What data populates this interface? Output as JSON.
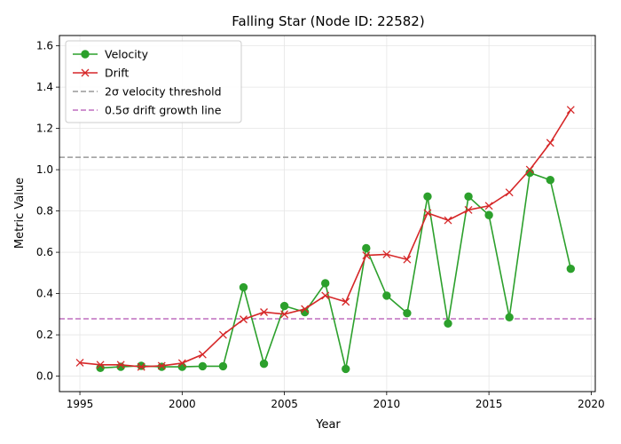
{
  "chart_data": {
    "type": "line",
    "title": "Falling Star (Node ID: 22582)",
    "xlabel": "Year",
    "ylabel": "Metric Value",
    "xlim": [
      1994,
      2020.2
    ],
    "ylim": [
      -0.075,
      1.65
    ],
    "xticks": [
      1995,
      2000,
      2005,
      2010,
      2015,
      2020
    ],
    "yticks": [
      0.0,
      0.2,
      0.4,
      0.6,
      0.8,
      1.0,
      1.2,
      1.4,
      1.6
    ],
    "xtick_labels": [
      "1995",
      "2000",
      "2005",
      "2010",
      "2015",
      "2020"
    ],
    "ytick_labels": [
      "0.0",
      "0.2",
      "0.4",
      "0.6",
      "0.8",
      "1.0",
      "1.2",
      "1.4",
      "1.6"
    ],
    "grid": true,
    "legend_position": "top-left",
    "series": [
      {
        "name": "Velocity",
        "color": "#2ca02c",
        "marker": "circle",
        "x": [
          1996,
          1997,
          1998,
          1999,
          2000,
          2001,
          2002,
          2003,
          2004,
          2005,
          2006,
          2007,
          2008,
          2009,
          2010,
          2011,
          2012,
          2013,
          2014,
          2015,
          2016,
          2017,
          2018,
          2019
        ],
        "values": [
          0.04,
          0.045,
          0.05,
          0.045,
          0.045,
          0.048,
          0.048,
          0.43,
          0.06,
          0.34,
          0.31,
          0.45,
          0.035,
          0.62,
          0.39,
          0.305,
          0.87,
          0.255,
          0.87,
          0.78,
          0.285,
          0.985,
          0.95,
          0.52
        ]
      },
      {
        "name": "Drift",
        "color": "#d62728",
        "marker": "x",
        "x": [
          1995,
          1996,
          1997,
          1998,
          1999,
          2000,
          2001,
          2002,
          2003,
          2004,
          2005,
          2006,
          2007,
          2008,
          2009,
          2010,
          2011,
          2012,
          2013,
          2014,
          2015,
          2016,
          2017,
          2018,
          2019
        ],
        "values": [
          0.065,
          0.055,
          0.055,
          0.045,
          0.05,
          0.063,
          0.105,
          0.2,
          0.275,
          0.31,
          0.3,
          0.325,
          0.39,
          0.36,
          0.585,
          0.59,
          0.565,
          0.79,
          0.755,
          0.805,
          0.825,
          0.89,
          1.0,
          1.13,
          1.29
        ]
      }
    ],
    "reference_lines": [
      {
        "name": "2σ velocity threshold",
        "y": 1.06,
        "color": "#999999"
      },
      {
        "name": "0.5σ drift growth line",
        "y": 0.278,
        "color": "#bf6fbf"
      }
    ]
  }
}
